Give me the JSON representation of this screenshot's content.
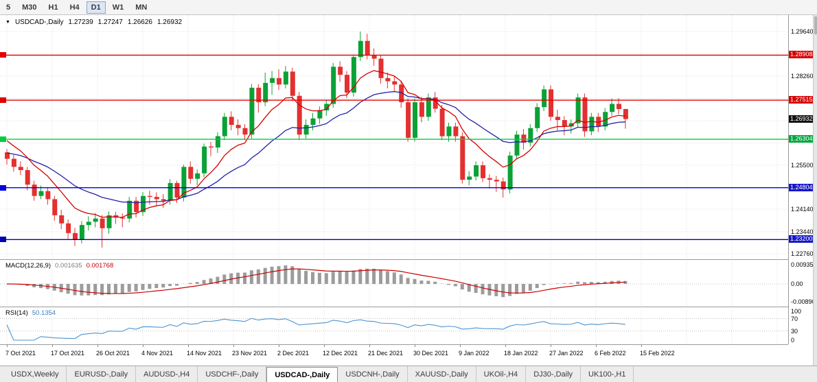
{
  "toolbar": {
    "timeframes": [
      "5",
      "M30",
      "H1",
      "H4",
      "D1",
      "W1",
      "MN"
    ],
    "active_timeframe": "D1"
  },
  "chart": {
    "expand_icon": "▼",
    "symbol_title": "USDCAD-,Daily",
    "open": "1.27239",
    "high": "1.27247",
    "low": "1.26626",
    "close": "1.26932"
  },
  "price_axis": {
    "plain_labels": [
      "1.29640",
      "1.28260",
      "1.25500",
      "1.24140",
      "1.23440",
      "1.22760"
    ],
    "badges": [
      {
        "value": "1.28908",
        "color": "#d40000"
      },
      {
        "value": "1.27515",
        "color": "#d40000"
      },
      {
        "value": "1.26932",
        "color": "#111111"
      },
      {
        "value": "1.26304",
        "color": "#00a63c"
      },
      {
        "value": "1.24804",
        "color": "#1616c8"
      },
      {
        "value": "1.23200",
        "color": "#1616c8"
      }
    ]
  },
  "indicators": {
    "macd": {
      "name": "MACD(12,26,9)",
      "main_value": "0.001635",
      "signal_value": "0.001768",
      "axis": [
        "0.00935",
        "0.00",
        "-0.00890"
      ]
    },
    "rsi": {
      "name": "RSI(14)",
      "value": "50.1354",
      "axis": [
        "100",
        "70",
        "30",
        "0"
      ],
      "levels": [
        70,
        30
      ]
    }
  },
  "date_axis": {
    "labels": [
      "7 Oct 2021",
      "17 Oct 2021",
      "26 Oct 2021",
      "4 Nov 2021",
      "14 Nov 2021",
      "23 Nov 2021",
      "2 Dec 2021",
      "12 Dec 2021",
      "21 Dec 2021",
      "30 Dec 2021",
      "9 Jan 2022",
      "18 Jan 2022",
      "27 Jan 2022",
      "6 Feb 2022",
      "15 Feb 2022"
    ]
  },
  "tabs": {
    "items": [
      "USDX,Weekly",
      "EURUSD-,Daily",
      "AUDUSD-,H4",
      "USDCHF-,Daily",
      "USDCAD-,Daily",
      "USDCNH-,Daily",
      "XAUUSD-,Daily",
      "UKOil-,H4",
      "DJ30-,Daily",
      "UK100-,H1"
    ],
    "active": "USDCAD-,Daily"
  },
  "colors": {
    "candle_up": "#0ba136",
    "candle_down": "#e33030",
    "ma_fast": "#d40000",
    "ma_slow": "#2020a8",
    "macd_hist": "#9c9c9c",
    "macd_signal": "#cc0000",
    "rsi_line": "#4b93d1",
    "grid": "#dcdcdc"
  },
  "chart_data": {
    "type": "candlestick",
    "symbol": "USDCAD",
    "period": "Daily",
    "current_ohlc": {
      "open": 1.27239,
      "high": 1.27247,
      "low": 1.26626,
      "close": 1.26932
    },
    "price_range": [
      1.2276,
      1.2964
    ],
    "price_gridlines": [
      1.2964,
      1.2895,
      1.2826,
      1.2757,
      1.2688,
      1.2619,
      1.255,
      1.2481,
      1.2414,
      1.2344,
      1.2276
    ],
    "hlines": [
      {
        "price": 1.28908,
        "color": "#e00000"
      },
      {
        "price": 1.27515,
        "color": "#e00000"
      },
      {
        "price": 1.26304,
        "color": "#00ce3c"
      },
      {
        "price": 1.24804,
        "color": "#0000e0"
      },
      {
        "price": 1.232,
        "color": "#0000b4"
      }
    ],
    "moving_averages": [
      {
        "name": "MA fast",
        "period": 9,
        "color": "#d40000"
      },
      {
        "name": "MA slow",
        "period": 22,
        "color": "#2020a8"
      }
    ],
    "candles": [
      [
        1.259,
        1.26,
        1.2552,
        1.257
      ],
      [
        1.257,
        1.2582,
        1.253,
        1.2545
      ],
      [
        1.2545,
        1.2562,
        1.252,
        1.2535
      ],
      [
        1.2535,
        1.2545,
        1.2472,
        1.249
      ],
      [
        1.249,
        1.2502,
        1.244,
        1.2455
      ],
      [
        1.2455,
        1.2487,
        1.2445,
        1.247
      ],
      [
        1.247,
        1.248,
        1.2428,
        1.2445
      ],
      [
        1.2445,
        1.2455,
        1.2378,
        1.2395
      ],
      [
        1.2395,
        1.2412,
        1.2352,
        1.237
      ],
      [
        1.237,
        1.2382,
        1.2322,
        1.234
      ],
      [
        1.234,
        1.2356,
        1.23,
        1.232
      ],
      [
        1.232,
        1.2377,
        1.2308,
        1.2365
      ],
      [
        1.2365,
        1.2392,
        1.2348,
        1.2375
      ],
      [
        1.2375,
        1.2402,
        1.2358,
        1.2385
      ],
      [
        1.2385,
        1.2396,
        1.2295,
        1.2355
      ],
      [
        1.2355,
        1.2407,
        1.2338,
        1.2395
      ],
      [
        1.2395,
        1.2406,
        1.2368,
        1.2388
      ],
      [
        1.2388,
        1.2401,
        1.2358,
        1.2385
      ],
      [
        1.2385,
        1.2452,
        1.2373,
        1.244
      ],
      [
        1.244,
        1.2452,
        1.2388,
        1.2405
      ],
      [
        1.2405,
        1.2467,
        1.2393,
        1.2455
      ],
      [
        1.2455,
        1.2471,
        1.2428,
        1.2452
      ],
      [
        1.2452,
        1.2466,
        1.2423,
        1.2445
      ],
      [
        1.2445,
        1.2461,
        1.2418,
        1.244
      ],
      [
        1.244,
        1.2507,
        1.2428,
        1.2495
      ],
      [
        1.2495,
        1.2502,
        1.2433,
        1.245
      ],
      [
        1.245,
        1.2552,
        1.2438,
        1.2545
      ],
      [
        1.2545,
        1.2562,
        1.2493,
        1.2508
      ],
      [
        1.2508,
        1.2537,
        1.2488,
        1.2525
      ],
      [
        1.2525,
        1.2617,
        1.2513,
        1.2608
      ],
      [
        1.2608,
        1.2622,
        1.2578,
        1.2605
      ],
      [
        1.2605,
        1.2652,
        1.2588,
        1.264
      ],
      [
        1.264,
        1.2712,
        1.2628,
        1.27
      ],
      [
        1.27,
        1.2717,
        1.2658,
        1.2675
      ],
      [
        1.2675,
        1.2692,
        1.2643,
        1.2665
      ],
      [
        1.2665,
        1.2677,
        1.2628,
        1.2645
      ],
      [
        1.2645,
        1.2802,
        1.2633,
        1.279
      ],
      [
        1.279,
        1.2801,
        1.2713,
        1.2745
      ],
      [
        1.2745,
        1.2837,
        1.2733,
        1.2805
      ],
      [
        1.2805,
        1.2842,
        1.2768,
        1.282
      ],
      [
        1.282,
        1.2847,
        1.2783,
        1.28
      ],
      [
        1.28,
        1.2857,
        1.2788,
        1.284
      ],
      [
        1.284,
        1.2852,
        1.2748,
        1.2765
      ],
      [
        1.2765,
        1.2777,
        1.2628,
        1.2645
      ],
      [
        1.2645,
        1.2692,
        1.2633,
        1.2675
      ],
      [
        1.2675,
        1.2712,
        1.2658,
        1.2695
      ],
      [
        1.2695,
        1.2732,
        1.2678,
        1.272
      ],
      [
        1.272,
        1.2752,
        1.2703,
        1.274
      ],
      [
        1.274,
        1.2867,
        1.2728,
        1.2855
      ],
      [
        1.2855,
        1.2872,
        1.2808,
        1.283
      ],
      [
        1.283,
        1.2842,
        1.2758,
        1.2775
      ],
      [
        1.2775,
        1.2892,
        1.2763,
        1.2885
      ],
      [
        1.2885,
        1.2964,
        1.2873,
        1.2935
      ],
      [
        1.2935,
        1.2957,
        1.2878,
        1.289
      ],
      [
        1.289,
        1.2912,
        1.2858,
        1.288
      ],
      [
        1.288,
        1.2892,
        1.2803,
        1.282
      ],
      [
        1.282,
        1.2837,
        1.2788,
        1.281
      ],
      [
        1.281,
        1.2827,
        1.2778,
        1.28
      ],
      [
        1.28,
        1.2812,
        1.2728,
        1.2745
      ],
      [
        1.2745,
        1.2757,
        1.2623,
        1.2635
      ],
      [
        1.2635,
        1.2757,
        1.2623,
        1.2745
      ],
      [
        1.2745,
        1.2762,
        1.2683,
        1.27
      ],
      [
        1.27,
        1.2772,
        1.2688,
        1.276
      ],
      [
        1.276,
        1.2777,
        1.2713,
        1.2725
      ],
      [
        1.2725,
        1.2737,
        1.2628,
        1.264
      ],
      [
        1.264,
        1.2682,
        1.2623,
        1.267
      ],
      [
        1.267,
        1.2682,
        1.2623,
        1.264
      ],
      [
        1.264,
        1.2652,
        1.2493,
        1.2505
      ],
      [
        1.2505,
        1.2532,
        1.2488,
        1.2515
      ],
      [
        1.2515,
        1.2562,
        1.2503,
        1.255
      ],
      [
        1.255,
        1.2562,
        1.2498,
        1.251
      ],
      [
        1.251,
        1.2522,
        1.2478,
        1.2505
      ],
      [
        1.2505,
        1.2517,
        1.2468,
        1.25
      ],
      [
        1.25,
        1.2512,
        1.245,
        1.2475
      ],
      [
        1.2475,
        1.2592,
        1.2463,
        1.258
      ],
      [
        1.258,
        1.2657,
        1.2568,
        1.2645
      ],
      [
        1.2645,
        1.2662,
        1.2598,
        1.262
      ],
      [
        1.262,
        1.2677,
        1.2608,
        1.2665
      ],
      [
        1.2665,
        1.2742,
        1.2653,
        1.273
      ],
      [
        1.273,
        1.2797,
        1.2718,
        1.2785
      ],
      [
        1.2785,
        1.2797,
        1.2688,
        1.27
      ],
      [
        1.27,
        1.2722,
        1.2658,
        1.269
      ],
      [
        1.269,
        1.2702,
        1.2643,
        1.267
      ],
      [
        1.267,
        1.2692,
        1.2648,
        1.268
      ],
      [
        1.268,
        1.2772,
        1.2668,
        1.276
      ],
      [
        1.276,
        1.2772,
        1.2638,
        1.2655
      ],
      [
        1.2655,
        1.2712,
        1.2643,
        1.27
      ],
      [
        1.27,
        1.2712,
        1.2653,
        1.267
      ],
      [
        1.267,
        1.2727,
        1.2658,
        1.2715
      ],
      [
        1.2715,
        1.2757,
        1.2703,
        1.274
      ],
      [
        1.274,
        1.2758,
        1.2708,
        1.2724
      ],
      [
        1.2724,
        1.2725,
        1.2663,
        1.2693
      ]
    ]
  }
}
